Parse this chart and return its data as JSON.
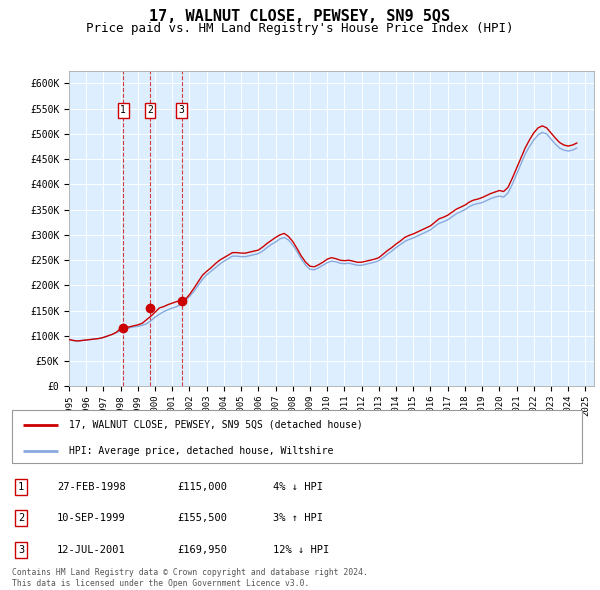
{
  "title": "17, WALNUT CLOSE, PEWSEY, SN9 5QS",
  "subtitle": "Price paid vs. HM Land Registry's House Price Index (HPI)",
  "title_fontsize": 11,
  "subtitle_fontsize": 9,
  "ylabel_ticks": [
    "£0",
    "£50K",
    "£100K",
    "£150K",
    "£200K",
    "£250K",
    "£300K",
    "£350K",
    "£400K",
    "£450K",
    "£500K",
    "£550K",
    "£600K"
  ],
  "ytick_values": [
    0,
    50000,
    100000,
    150000,
    200000,
    250000,
    300000,
    350000,
    400000,
    450000,
    500000,
    550000,
    600000
  ],
  "xlim": [
    1995.0,
    2025.5
  ],
  "ylim": [
    0,
    625000
  ],
  "background_color": "#ddeeff",
  "grid_color": "#ffffff",
  "red_line_color": "#cc0000",
  "blue_line_color": "#88aadd",
  "transaction_color": "#cc0000",
  "transactions": [
    {
      "label": "1",
      "date": "27-FEB-1998",
      "year": 1998.15,
      "price": 115000,
      "pct": "4%",
      "dir": "↓",
      "rel": "HPI"
    },
    {
      "label": "2",
      "date": "10-SEP-1999",
      "year": 1999.7,
      "price": 155500,
      "pct": "3%",
      "dir": "↑",
      "rel": "HPI"
    },
    {
      "label": "3",
      "date": "12-JUL-2001",
      "year": 2001.54,
      "price": 169950,
      "pct": "12%",
      "dir": "↓",
      "rel": "HPI"
    }
  ],
  "legend_label_red": "17, WALNUT CLOSE, PEWSEY, SN9 5QS (detached house)",
  "legend_label_blue": "HPI: Average price, detached house, Wiltshire",
  "footer1": "Contains HM Land Registry data © Crown copyright and database right 2024.",
  "footer2": "This data is licensed under the Open Government Licence v3.0.",
  "hpi_data_x": [
    1995.0,
    1995.25,
    1995.5,
    1995.75,
    1996.0,
    1996.25,
    1996.5,
    1996.75,
    1997.0,
    1997.25,
    1997.5,
    1997.75,
    1998.0,
    1998.25,
    1998.5,
    1998.75,
    1999.0,
    1999.25,
    1999.5,
    1999.75,
    2000.0,
    2000.25,
    2000.5,
    2000.75,
    2001.0,
    2001.25,
    2001.5,
    2001.75,
    2002.0,
    2002.25,
    2002.5,
    2002.75,
    2003.0,
    2003.25,
    2003.5,
    2003.75,
    2004.0,
    2004.25,
    2004.5,
    2004.75,
    2005.0,
    2005.25,
    2005.5,
    2005.75,
    2006.0,
    2006.25,
    2006.5,
    2006.75,
    2007.0,
    2007.25,
    2007.5,
    2007.75,
    2008.0,
    2008.25,
    2008.5,
    2008.75,
    2009.0,
    2009.25,
    2009.5,
    2009.75,
    2010.0,
    2010.25,
    2010.5,
    2010.75,
    2011.0,
    2011.25,
    2011.5,
    2011.75,
    2012.0,
    2012.25,
    2012.5,
    2012.75,
    2013.0,
    2013.25,
    2013.5,
    2013.75,
    2014.0,
    2014.25,
    2014.5,
    2014.75,
    2015.0,
    2015.25,
    2015.5,
    2015.75,
    2016.0,
    2016.25,
    2016.5,
    2016.75,
    2017.0,
    2017.25,
    2017.5,
    2017.75,
    2018.0,
    2018.25,
    2018.5,
    2018.75,
    2019.0,
    2019.25,
    2019.5,
    2019.75,
    2020.0,
    2020.25,
    2020.5,
    2020.75,
    2021.0,
    2021.25,
    2021.5,
    2021.75,
    2022.0,
    2022.25,
    2022.5,
    2022.75,
    2023.0,
    2023.25,
    2023.5,
    2023.75,
    2024.0,
    2024.25,
    2024.5
  ],
  "hpi_data_y": [
    93000,
    91000,
    90000,
    91000,
    92000,
    93000,
    94000,
    95000,
    97000,
    100000,
    103000,
    107000,
    110000,
    113000,
    116000,
    118000,
    119000,
    121000,
    124000,
    130000,
    137000,
    143000,
    148000,
    152000,
    155000,
    158000,
    163000,
    170000,
    178000,
    188000,
    200000,
    212000,
    221000,
    228000,
    235000,
    242000,
    248000,
    253000,
    258000,
    258000,
    257000,
    257000,
    259000,
    261000,
    263000,
    268000,
    275000,
    281000,
    286000,
    292000,
    295000,
    290000,
    280000,
    267000,
    252000,
    240000,
    232000,
    231000,
    235000,
    240000,
    245000,
    248000,
    247000,
    244000,
    243000,
    244000,
    242000,
    240000,
    240000,
    242000,
    244000,
    246000,
    249000,
    255000,
    262000,
    268000,
    275000,
    281000,
    287000,
    291000,
    294000,
    298000,
    302000,
    306000,
    310000,
    317000,
    323000,
    326000,
    330000,
    336000,
    342000,
    346000,
    350000,
    356000,
    360000,
    362000,
    364000,
    368000,
    372000,
    375000,
    377000,
    375000,
    383000,
    400000,
    420000,
    440000,
    460000,
    475000,
    488000,
    498000,
    503000,
    500000,
    490000,
    480000,
    472000,
    468000,
    466000,
    468000,
    472000
  ],
  "red_data_x": [
    1995.0,
    1995.25,
    1995.5,
    1995.75,
    1996.0,
    1996.25,
    1996.5,
    1996.75,
    1997.0,
    1997.25,
    1997.5,
    1997.75,
    1998.0,
    1998.25,
    1998.5,
    1998.75,
    1999.0,
    1999.25,
    1999.5,
    1999.75,
    2000.0,
    2000.25,
    2000.5,
    2000.75,
    2001.0,
    2001.25,
    2001.5,
    2001.75,
    2002.0,
    2002.25,
    2002.5,
    2002.75,
    2003.0,
    2003.25,
    2003.5,
    2003.75,
    2004.0,
    2004.25,
    2004.5,
    2004.75,
    2005.0,
    2005.25,
    2005.5,
    2005.75,
    2006.0,
    2006.25,
    2006.5,
    2006.75,
    2007.0,
    2007.25,
    2007.5,
    2007.75,
    2008.0,
    2008.25,
    2008.5,
    2008.75,
    2009.0,
    2009.25,
    2009.5,
    2009.75,
    2010.0,
    2010.25,
    2010.5,
    2010.75,
    2011.0,
    2011.25,
    2011.5,
    2011.75,
    2012.0,
    2012.25,
    2012.5,
    2012.75,
    2013.0,
    2013.25,
    2013.5,
    2013.75,
    2014.0,
    2014.25,
    2014.5,
    2014.75,
    2015.0,
    2015.25,
    2015.5,
    2015.75,
    2016.0,
    2016.25,
    2016.5,
    2016.75,
    2017.0,
    2017.25,
    2017.5,
    2017.75,
    2018.0,
    2018.25,
    2018.5,
    2018.75,
    2019.0,
    2019.25,
    2019.5,
    2019.75,
    2020.0,
    2020.25,
    2020.5,
    2020.75,
    2021.0,
    2021.25,
    2021.5,
    2021.75,
    2022.0,
    2022.25,
    2022.5,
    2022.75,
    2023.0,
    2023.25,
    2023.5,
    2023.75,
    2024.0,
    2024.25,
    2024.5
  ],
  "red_data_y": [
    93000,
    91000,
    90000,
    91000,
    92000,
    93000,
    94000,
    95000,
    97000,
    100000,
    103000,
    107000,
    115000,
    116000,
    118000,
    120000,
    122000,
    125000,
    132000,
    139000,
    147000,
    155500,
    158000,
    162000,
    165000,
    168000,
    169950,
    172000,
    182000,
    194000,
    207000,
    220000,
    228000,
    235000,
    243000,
    250000,
    255000,
    260000,
    265000,
    265000,
    264000,
    264000,
    266000,
    268000,
    270000,
    276000,
    283000,
    289000,
    295000,
    300000,
    303000,
    297000,
    287000,
    273000,
    258000,
    246000,
    238000,
    237000,
    241000,
    246000,
    252000,
    255000,
    253000,
    250000,
    249000,
    250000,
    248000,
    246000,
    246000,
    248000,
    250000,
    252000,
    255000,
    262000,
    269000,
    275000,
    282000,
    288000,
    295000,
    299000,
    302000,
    306000,
    310000,
    314000,
    318000,
    325000,
    332000,
    335000,
    339000,
    345000,
    351000,
    355000,
    359000,
    365000,
    369000,
    371000,
    374000,
    378000,
    382000,
    385000,
    388000,
    386000,
    394000,
    412000,
    432000,
    452000,
    472000,
    488000,
    502000,
    512000,
    516000,
    512000,
    502000,
    492000,
    483000,
    478000,
    476000,
    478000,
    482000
  ],
  "xtick_years": [
    1995,
    1996,
    1997,
    1998,
    1999,
    2000,
    2001,
    2002,
    2003,
    2004,
    2005,
    2006,
    2007,
    2008,
    2009,
    2010,
    2011,
    2012,
    2013,
    2014,
    2015,
    2016,
    2017,
    2018,
    2019,
    2020,
    2021,
    2022,
    2023,
    2024,
    2025
  ]
}
